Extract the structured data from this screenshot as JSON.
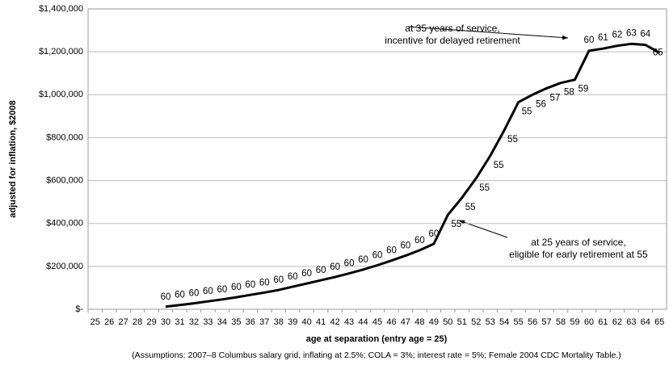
{
  "chart_data": {
    "type": "line",
    "y_label": "adjusted for inflation, $2008",
    "x_label": "age at separation (entry age = 25)",
    "footnote": "(Assumptions:  2007–8 Columbus salary grid, inflating at 2.5%; COLA = 3%; interest rate = 5%; Female 2004 CDC Mortality Table.)",
    "annotations": [
      "at 35 years of service,",
      "incentive for delayed retirement",
      "at 25 years of service,",
      "eligible for early retirement at 55"
    ],
    "categories": [
      "25",
      "26",
      "27",
      "28",
      "29",
      "30",
      "31",
      "32",
      "33",
      "34",
      "35",
      "36",
      "37",
      "38",
      "39",
      "40",
      "41",
      "42",
      "43",
      "44",
      "45",
      "46",
      "47",
      "48",
      "49",
      "50",
      "51",
      "52",
      "53",
      "54",
      "55",
      "56",
      "57",
      "58",
      "59",
      "60",
      "61",
      "62",
      "63",
      "64",
      "65"
    ],
    "values": [
      null,
      null,
      null,
      null,
      null,
      12000,
      20000,
      28000,
      37000,
      46000,
      56000,
      67000,
      78000,
      90000,
      105000,
      120000,
      135000,
      150000,
      167000,
      185000,
      205000,
      227000,
      250000,
      275000,
      305000,
      440000,
      520000,
      610000,
      715000,
      835000,
      965000,
      1000000,
      1030000,
      1055000,
      1070000,
      1205000,
      1215000,
      1228000,
      1237000,
      1232000,
      1195000
    ],
    "point_labels": [
      null,
      null,
      null,
      null,
      null,
      60,
      60,
      60,
      60,
      60,
      60,
      60,
      60,
      60,
      60,
      60,
      60,
      60,
      60,
      60,
      60,
      60,
      60,
      60,
      60,
      55,
      55,
      55,
      55,
      55,
      55,
      56,
      57,
      58,
      59,
      60,
      61,
      62,
      63,
      64,
      65
    ],
    "color": "#000000",
    "ylim": [
      0,
      1400000
    ],
    "yticks": [
      {
        "value": 0,
        "label": "$-"
      },
      {
        "value": 200000,
        "label": "$200,000"
      },
      {
        "value": 400000,
        "label": "$400,000"
      },
      {
        "value": 600000,
        "label": "$600,000"
      },
      {
        "value": 800000,
        "label": "$800,000"
      },
      {
        "value": 1000000,
        "label": "$1,000,000"
      },
      {
        "value": 1200000,
        "label": "$1,200,000"
      },
      {
        "value": 1400000,
        "label": "$1,400,000"
      }
    ],
    "grid": true
  }
}
